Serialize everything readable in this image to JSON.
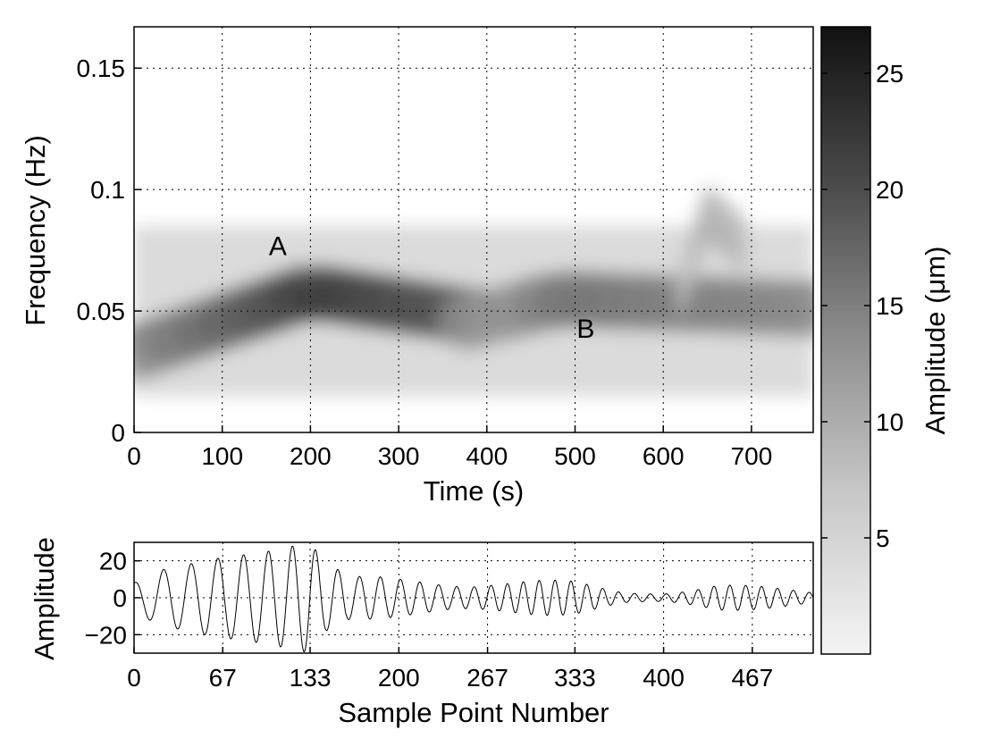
{
  "chart_data": [
    {
      "type": "heatmap",
      "xlabel": "Time (s)",
      "ylabel": "Frequency (Hz)",
      "xlim": [
        0,
        770
      ],
      "ylim": [
        0,
        0.167
      ],
      "grid": true,
      "xticks": [
        0,
        100,
        200,
        300,
        400,
        500,
        600,
        700
      ],
      "xtick_labels": [
        "0",
        "100",
        "200",
        "300",
        "400",
        "500",
        "600",
        "700"
      ],
      "yticks": [
        0,
        0.05,
        0.1,
        0.15
      ],
      "ytick_labels": [
        "0",
        "0.05",
        "0.1",
        "0.15"
      ],
      "colorbar": {
        "label": "Amplitude (μm)",
        "range": [
          0,
          27
        ],
        "ticks": [
          5,
          10,
          15,
          20,
          25
        ],
        "tick_labels": [
          "5",
          "10",
          "15",
          "20",
          "25"
        ]
      },
      "annotations": [
        {
          "text": "A",
          "x": 163,
          "y": 0.073
        },
        {
          "text": "B",
          "x": 512,
          "y": 0.039
        }
      ],
      "ridges": [
        {
          "t_start": 0,
          "t_end": 380,
          "f_start": 0.033,
          "f_peak": 0.058,
          "t_peak": 200,
          "peak_amplitude": 25
        },
        {
          "t_start": 380,
          "t_end": 770,
          "f_start": 0.045,
          "f_peak": 0.055,
          "t_peak": 480,
          "peak_amplitude": 17
        },
        {
          "t_start": 620,
          "t_end": 690,
          "f_start": 0.06,
          "f_peak": 0.09,
          "t_peak": 650,
          "peak_amplitude": 9
        }
      ]
    },
    {
      "type": "line",
      "xlabel": "Sample Point Number",
      "ylabel": "Amplitude",
      "xlim": [
        0,
        513
      ],
      "ylim": [
        -30,
        30
      ],
      "grid": true,
      "xticks": [
        0,
        67,
        133,
        200,
        267,
        333,
        400,
        467
      ],
      "xtick_labels": [
        "0",
        "67",
        "133",
        "200",
        "267",
        "333",
        "400",
        "467"
      ],
      "yticks": [
        -20,
        0,
        20
      ],
      "ytick_labels": [
        "−20",
        "0",
        "20"
      ],
      "series": [
        {
          "envelope": [
            {
              "x": 0,
              "a": 8
            },
            {
              "x": 20,
              "a": 15
            },
            {
              "x": 60,
              "a": 21
            },
            {
              "x": 100,
              "a": 25
            },
            {
              "x": 133,
              "a": 30
            },
            {
              "x": 145,
              "a": 18
            },
            {
              "x": 165,
              "a": 12
            },
            {
              "x": 200,
              "a": 11
            },
            {
              "x": 267,
              "a": 12
            },
            {
              "x": 333,
              "a": 9
            },
            {
              "x": 370,
              "a": 4
            },
            {
              "x": 400,
              "a": 4
            },
            {
              "x": 440,
              "a": 8
            },
            {
              "x": 513,
              "a": 4
            }
          ],
          "period_start": 22,
          "period_end": 12
        }
      ]
    }
  ]
}
